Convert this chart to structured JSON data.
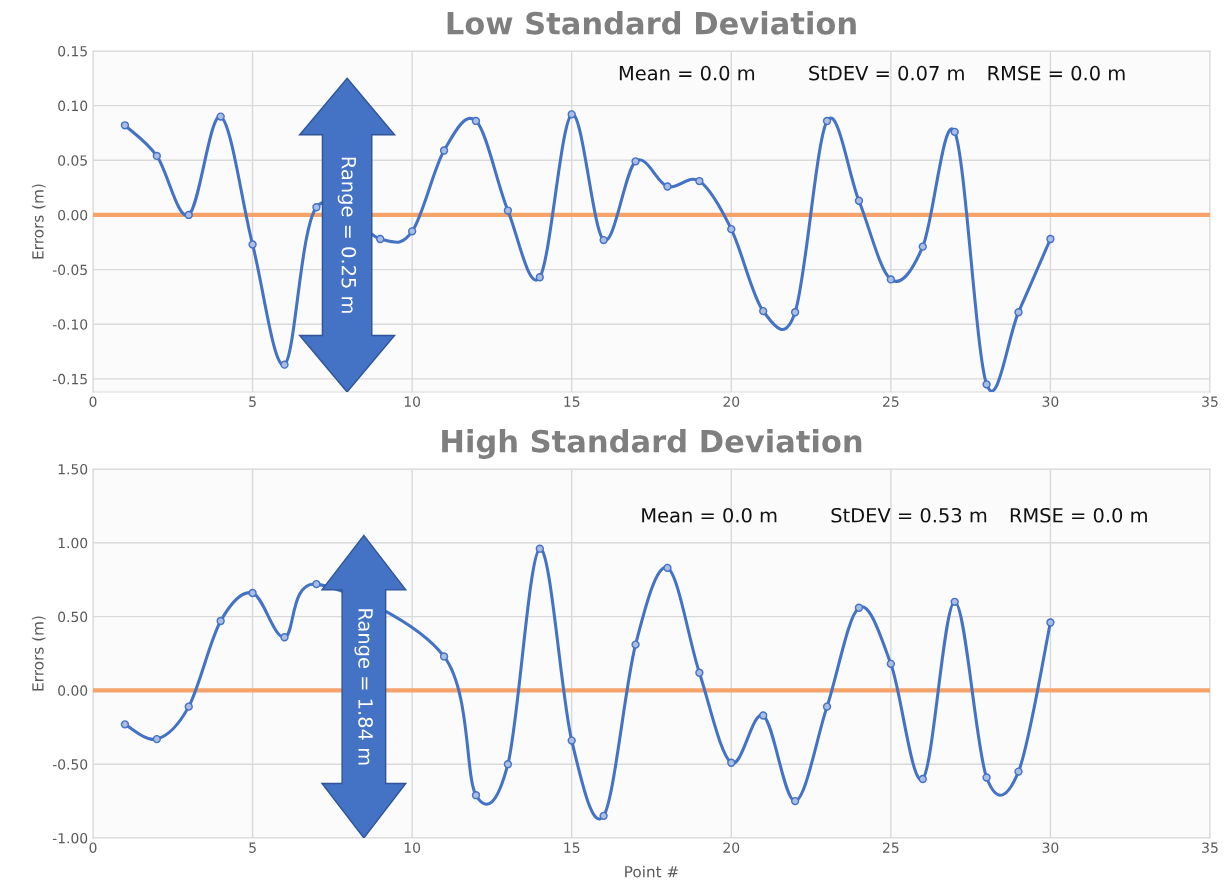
{
  "chart_data": [
    {
      "type": "line",
      "title": "Low Standard Deviation",
      "ylabel": "Errors (m)",
      "x": [
        1,
        2,
        3,
        4,
        5,
        6,
        7,
        8,
        9,
        10,
        11,
        12,
        13,
        14,
        15,
        16,
        17,
        18,
        19,
        20,
        21,
        22,
        23,
        24,
        25,
        26,
        27,
        28,
        29,
        30
      ],
      "series": [
        {
          "color": "#4472c4",
          "values": [
            0.082,
            0.054,
            0.0,
            0.09,
            -0.027,
            -0.137,
            0.007,
            null,
            -0.022,
            -0.015,
            0.059,
            0.086,
            0.004,
            -0.057,
            0.092,
            -0.023,
            0.049,
            0.026,
            0.031,
            -0.013,
            -0.088,
            -0.089,
            0.086,
            0.013,
            -0.059,
            -0.029,
            0.076,
            -0.155,
            -0.089,
            -0.022
          ]
        }
      ],
      "xlim": [
        0,
        35
      ],
      "xticks": [
        0,
        5,
        10,
        15,
        20,
        25,
        30,
        35
      ],
      "ylim": [
        -0.162,
        0.15
      ],
      "yticks": [
        {
          "value": -0.15,
          "label": "-0.15"
        },
        {
          "value": -0.1,
          "label": "-0.10"
        },
        {
          "value": -0.05,
          "label": "-0.05"
        },
        {
          "value": 0,
          "label": "0.00"
        },
        {
          "value": 0.05,
          "label": "0.05"
        },
        {
          "value": 0.1,
          "label": "0.10"
        },
        {
          "value": 0.15,
          "label": "0.15"
        }
      ],
      "ref_lines": [
        {
          "axis": "y",
          "value": 0,
          "color": "#f5a36b"
        }
      ],
      "annotations": [
        "Mean = 0.0 m",
        "StDEV = 0.07 m",
        "RMSE = 0.0 m",
        "Range = 0.25 m"
      ],
      "grid": true,
      "marker": "circle",
      "line_style": "solid",
      "legend": false
    },
    {
      "type": "line",
      "title": "High Standard Deviation",
      "ylabel": "Errors (m)",
      "xlabel": "Point #",
      "x": [
        1,
        2,
        3,
        4,
        5,
        6,
        7,
        8,
        9,
        10,
        11,
        12,
        13,
        14,
        15,
        16,
        17,
        18,
        19,
        20,
        21,
        22,
        23,
        24,
        25,
        26,
        27,
        28,
        29,
        30
      ],
      "series": [
        {
          "color": "#4472c4",
          "values": [
            -0.23,
            -0.33,
            -0.11,
            0.47,
            0.66,
            0.36,
            0.72,
            null,
            null,
            null,
            0.23,
            -0.71,
            -0.5,
            0.96,
            -0.34,
            -0.85,
            0.31,
            0.83,
            0.12,
            -0.49,
            -0.17,
            -0.75,
            -0.11,
            0.56,
            0.18,
            -0.6,
            0.6,
            -0.59,
            -0.55,
            0.46
          ]
        }
      ],
      "xlim": [
        0,
        35
      ],
      "xticks": [
        0,
        5,
        10,
        15,
        20,
        25,
        30,
        35
      ],
      "ylim": [
        -1.0,
        1.5
      ],
      "yticks": [
        {
          "value": -1,
          "label": "-1.00"
        },
        {
          "value": -0.5,
          "label": "-0.50"
        },
        {
          "value": 0,
          "label": "0.00"
        },
        {
          "value": 0.5,
          "label": "0.50"
        },
        {
          "value": 1,
          "label": "1.00"
        },
        {
          "value": 1.5,
          "label": "1.50"
        }
      ],
      "ref_lines": [
        {
          "axis": "y",
          "value": 0,
          "color": "#f5a36b"
        }
      ],
      "annotations": [
        "Mean = 0.0 m",
        "StDEV = 0.53 m",
        "RMSE = 0.0 m",
        "Range = 1.84 m"
      ],
      "grid": true,
      "marker": "circle",
      "line_style": "solid",
      "legend": false
    }
  ]
}
